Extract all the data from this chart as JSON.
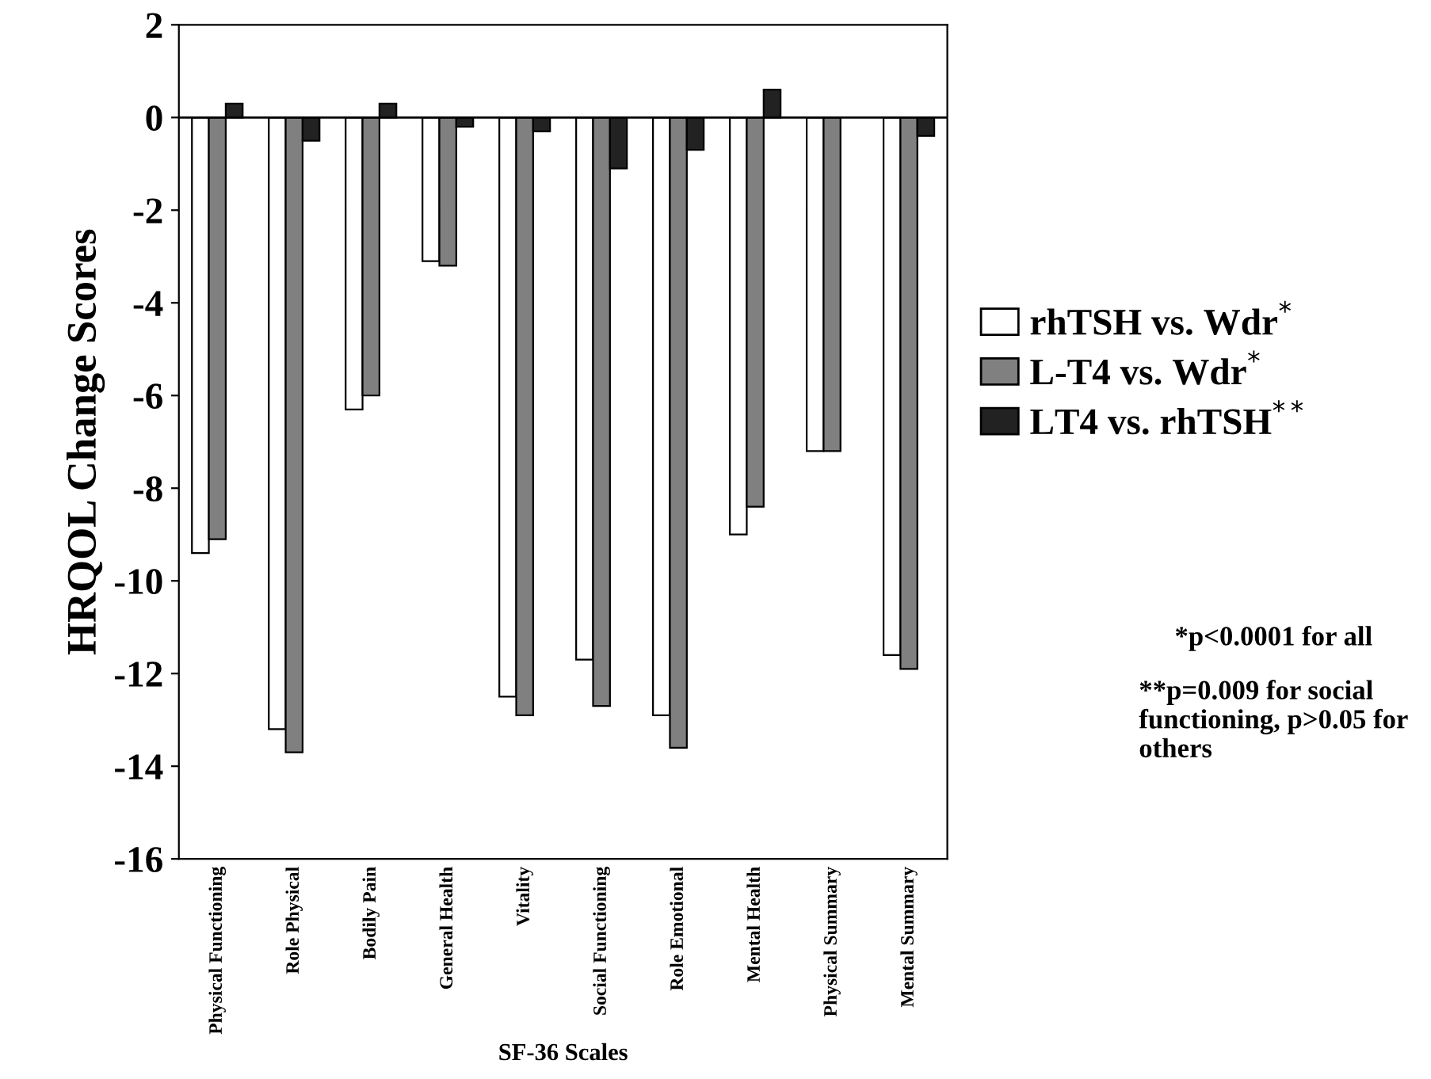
{
  "chart_data": {
    "type": "bar",
    "xlabel": "SF-36 Scales",
    "ylabel": "HRQOL Change Scores",
    "categories": [
      "Physical Functioning",
      "Role Physical",
      "Bodily Pain",
      "General Health",
      "Vitality",
      "Social Functioning",
      "Role Emotional",
      "Mental Health",
      "Physical Summary",
      "Mental Summary"
    ],
    "series": [
      {
        "name": "rhTSH vs. Wdr$^{*}$",
        "color": "#ffffff",
        "values": [
          -9.4,
          -13.2,
          -6.3,
          -3.1,
          -12.5,
          -11.7,
          -12.9,
          -9.0,
          -7.2,
          -11.6
        ]
      },
      {
        "name": "L-T4 vs. Wdr$^{*}$",
        "color": "#808080",
        "values": [
          -9.1,
          -13.7,
          -6.0,
          -3.2,
          -12.9,
          -12.7,
          -13.6,
          -8.4,
          -7.2,
          -11.9
        ]
      },
      {
        "name": "LT4 vs. rhTSH$^{**}$",
        "color": "#222222",
        "values": [
          0.3,
          -0.5,
          0.3,
          -0.2,
          -0.3,
          -1.1,
          -0.7,
          0.6,
          null,
          -0.4
        ]
      }
    ],
    "ylim": [
      -16,
      2
    ],
    "yticks": [
      {
        "value": -16,
        "label": "-16"
      },
      {
        "value": -14,
        "label": "-14"
      },
      {
        "value": -12,
        "label": "-12"
      },
      {
        "value": -10,
        "label": "-10"
      },
      {
        "value": -8,
        "label": "-8"
      },
      {
        "value": -6,
        "label": "-6"
      },
      {
        "value": -4,
        "label": "-4"
      },
      {
        "value": -2,
        "label": "-2"
      },
      0,
      2
    ],
    "ref_lines": [
      {
        "axis": "y",
        "value": 0,
        "color": "#000000"
      }
    ],
    "legend": "right",
    "annotations": [
      "*p<0.0001 for all",
      "**p=0.009 for social functioning, p>0.05 for others"
    ]
  }
}
